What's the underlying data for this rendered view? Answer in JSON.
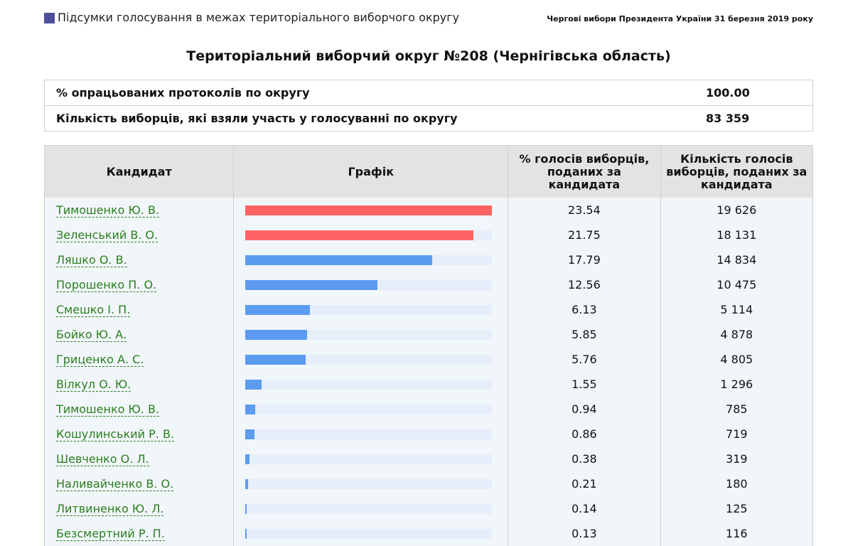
{
  "header": {
    "left_title": "Підсумки голосування в межах територіального виборчого округу",
    "right_title": "Чергові вибори Президента України 31 березня 2019 року"
  },
  "district_title": "Територіальний виборчий округ №208 (Чернігівська область)",
  "summary": [
    {
      "label": "% опрацьованих протоколів по округу",
      "value": "100.00"
    },
    {
      "label": "Кількість виборців, які взяли участь у голосуванні по округу",
      "value": "83 359"
    }
  ],
  "table": {
    "headers": {
      "candidate": "Кандидат",
      "graph": "Графік",
      "percent": "% голосів виборців, поданих за кандидата",
      "count": "Кількість голосів виборців, поданих за кандидата"
    },
    "colors": {
      "leader": "#ff6464",
      "other": "#5c9cf0",
      "track": "#e6eef9"
    },
    "rows": [
      {
        "candidate": "Тимошенко Ю. В.",
        "percent": "23.54",
        "count": "19 626",
        "leader": true
      },
      {
        "candidate": "Зеленський В. О.",
        "percent": "21.75",
        "count": "18 131",
        "leader": true
      },
      {
        "candidate": "Ляшко О. В.",
        "percent": "17.79",
        "count": "14 834",
        "leader": false
      },
      {
        "candidate": "Порошенко П. О.",
        "percent": "12.56",
        "count": "10 475",
        "leader": false
      },
      {
        "candidate": "Смешко І. П.",
        "percent": "6.13",
        "count": "5 114",
        "leader": false
      },
      {
        "candidate": "Бойко Ю. А.",
        "percent": "5.85",
        "count": "4 878",
        "leader": false
      },
      {
        "candidate": "Гриценко А. С.",
        "percent": "5.76",
        "count": "4 805",
        "leader": false
      },
      {
        "candidate": "Вілкул О. Ю.",
        "percent": "1.55",
        "count": "1 296",
        "leader": false
      },
      {
        "candidate": "Тимошенко Ю. В.",
        "percent": "0.94",
        "count": "785",
        "leader": false
      },
      {
        "candidate": "Кошулинський Р. В.",
        "percent": "0.86",
        "count": "719",
        "leader": false
      },
      {
        "candidate": "Шевченко О. Л.",
        "percent": "0.38",
        "count": "319",
        "leader": false
      },
      {
        "candidate": "Наливайченко В. О.",
        "percent": "0.21",
        "count": "180",
        "leader": false
      },
      {
        "candidate": "Литвиненко Ю. Л.",
        "percent": "0.14",
        "count": "125",
        "leader": false
      },
      {
        "candidate": "Безсмертний Р. П.",
        "percent": "0.13",
        "count": "116",
        "leader": false
      }
    ]
  }
}
